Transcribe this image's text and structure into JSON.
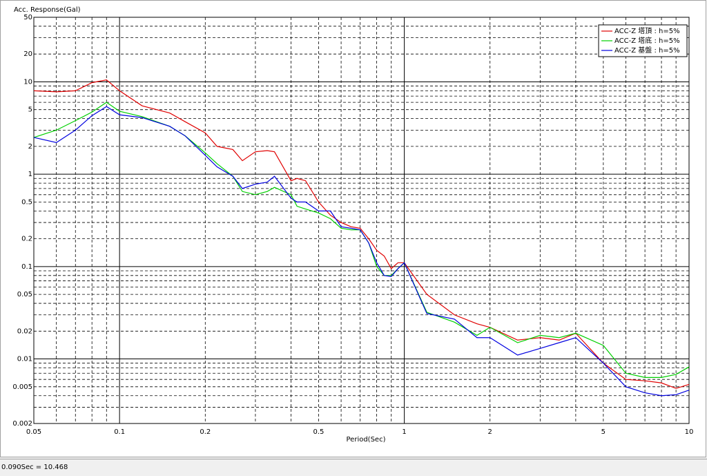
{
  "chart_data": {
    "type": "line",
    "ylabel": "Acc. Response(Gal)",
    "xlabel": "Period(Sec)",
    "xscale": "log",
    "yscale": "log",
    "grid": true,
    "legend": "upper right",
    "xlim": [
      0.05,
      10
    ],
    "ylim": [
      0.002,
      50
    ],
    "xticks": [
      0.05,
      0.1,
      0.2,
      0.5,
      1,
      2,
      5,
      10
    ],
    "yticks": [
      0.002,
      0.005,
      0.01,
      0.02,
      0.05,
      0.1,
      0.2,
      0.5,
      1,
      2,
      5,
      10,
      20,
      50
    ],
    "x": [
      0.05,
      0.06,
      0.07,
      0.08,
      0.09,
      0.1,
      0.12,
      0.15,
      0.17,
      0.2,
      0.22,
      0.25,
      0.27,
      0.3,
      0.33,
      0.35,
      0.4,
      0.42,
      0.45,
      0.5,
      0.55,
      0.6,
      0.65,
      0.7,
      0.75,
      0.8,
      0.85,
      0.9,
      0.95,
      1,
      1.2,
      1.5,
      1.8,
      2,
      2.5,
      3,
      3.5,
      4,
      5,
      6,
      7,
      8,
      9,
      10
    ],
    "series": [
      {
        "name": "ACC-Z 塔頂 : h=5%",
        "color": "#e00000",
        "values": [
          8.0,
          7.8,
          8.0,
          9.8,
          10.5,
          8.0,
          5.5,
          4.6,
          3.7,
          2.8,
          2.0,
          1.85,
          1.4,
          1.75,
          1.8,
          1.75,
          0.85,
          0.9,
          0.85,
          0.5,
          0.36,
          0.3,
          0.27,
          0.26,
          0.2,
          0.15,
          0.13,
          0.095,
          0.11,
          0.11,
          0.05,
          0.03,
          0.024,
          0.022,
          0.016,
          0.017,
          0.016,
          0.019,
          0.009,
          0.006,
          0.0058,
          0.0055,
          0.0048,
          0.0053
        ]
      },
      {
        "name": "ACC-Z 塔底 : h=5%",
        "color": "#00d000",
        "values": [
          2.5,
          3.0,
          3.8,
          4.7,
          6.0,
          4.8,
          4.2,
          3.3,
          2.6,
          1.7,
          1.3,
          0.95,
          0.65,
          0.6,
          0.65,
          0.72,
          0.6,
          0.45,
          0.42,
          0.38,
          0.33,
          0.26,
          0.25,
          0.25,
          0.18,
          0.1,
          0.08,
          0.08,
          0.095,
          0.11,
          0.032,
          0.025,
          0.018,
          0.022,
          0.015,
          0.018,
          0.017,
          0.019,
          0.014,
          0.007,
          0.0063,
          0.0063,
          0.0068,
          0.0082
        ]
      },
      {
        "name": "ACC-Z 基盤 : h=5%",
        "color": "#0000e0",
        "values": [
          2.5,
          2.2,
          3.0,
          4.3,
          5.4,
          4.4,
          4.1,
          3.3,
          2.6,
          1.6,
          1.2,
          0.95,
          0.7,
          0.78,
          0.82,
          0.95,
          0.55,
          0.5,
          0.5,
          0.4,
          0.4,
          0.27,
          0.26,
          0.25,
          0.18,
          0.11,
          0.08,
          0.078,
          0.095,
          0.11,
          0.031,
          0.027,
          0.017,
          0.017,
          0.011,
          0.013,
          0.015,
          0.017,
          0.009,
          0.005,
          0.0043,
          0.004,
          0.0041,
          0.0046
        ]
      }
    ]
  },
  "status_bar": "0.090Sec = 10.468"
}
